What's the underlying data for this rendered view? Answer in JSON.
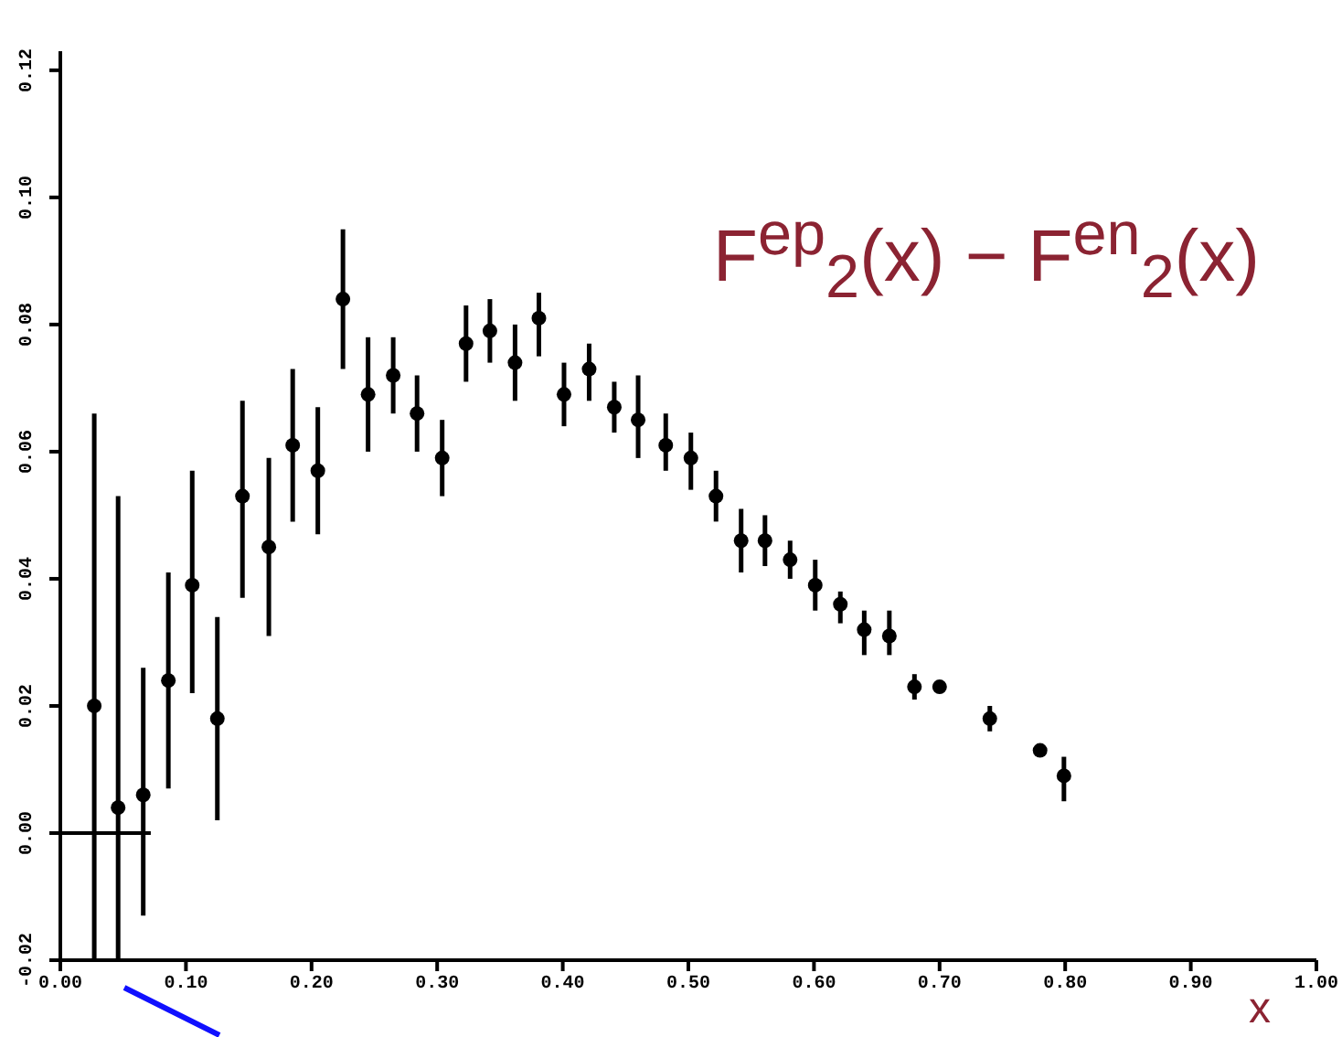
{
  "chart_data": {
    "type": "scatter",
    "xlabel": "x",
    "annotations": [
      "F$^{ep}$$_{2}$(x) − F$^{en}$$_{2}$(x)"
    ],
    "xlim": [
      0,
      1
    ],
    "ylim": [
      -0.02,
      0.123
    ],
    "xticks": [
      {
        "value": 0,
        "label": "0.00"
      },
      {
        "value": 0.1,
        "label": "0.10"
      },
      {
        "value": 0.2,
        "label": "0.20"
      },
      {
        "value": 0.3,
        "label": "0.30"
      },
      {
        "value": 0.4,
        "label": "0.40"
      },
      {
        "value": 0.5,
        "label": "0.50"
      },
      {
        "value": 0.6,
        "label": "0.60"
      },
      {
        "value": 0.7,
        "label": "0.70"
      },
      {
        "value": 0.8,
        "label": "0.80"
      },
      {
        "value": 0.9,
        "label": "0.90"
      },
      {
        "value": 1,
        "label": "1.00"
      }
    ],
    "yticks": [
      {
        "value": -0.02,
        "label": "-0.02"
      },
      {
        "value": 0,
        "label": "0.00"
      },
      {
        "value": 0.02,
        "label": "0.02"
      },
      {
        "value": 0.04,
        "label": "0.04"
      },
      {
        "value": 0.06,
        "label": "0.06"
      },
      {
        "value": 0.08,
        "label": "0.08"
      },
      {
        "value": 0.1,
        "label": "0.10"
      },
      {
        "value": 0.12,
        "label": "0.12"
      }
    ],
    "grid": false,
    "marker": "circle",
    "series": [
      {
        "type": "scatter",
        "color": "#000000",
        "x": [
          0.027,
          0.046,
          0.066,
          0.086,
          0.105,
          0.125,
          0.145,
          0.166,
          0.185,
          0.205,
          0.225,
          0.245,
          0.265,
          0.284,
          0.304,
          0.323,
          0.342,
          0.362,
          0.381,
          0.401,
          0.421,
          0.441,
          0.46,
          0.482,
          0.502,
          0.522,
          0.542,
          0.561,
          0.581,
          0.601,
          0.621,
          0.64,
          0.66,
          0.68,
          0.7,
          0.74,
          0.78,
          0.799
        ],
        "values": [
          0.02,
          0.004,
          0.006,
          0.024,
          0.039,
          0.018,
          0.053,
          0.045,
          0.061,
          0.057,
          0.084,
          0.069,
          0.072,
          0.066,
          0.059,
          0.077,
          0.079,
          0.074,
          0.081,
          0.069,
          0.073,
          0.067,
          0.065,
          0.061,
          0.059,
          0.053,
          0.046,
          0.046,
          0.043,
          0.039,
          0.036,
          0.032,
          0.031,
          0.023,
          0.023,
          0.018,
          0.013,
          0.009
        ],
        "errors": [
          [
            -0.02,
            0.066
          ],
          [
            -0.02,
            0.053
          ],
          [
            -0.013,
            0.026
          ],
          [
            0.007,
            0.041
          ],
          [
            0.022,
            0.057
          ],
          [
            0.002,
            0.034
          ],
          [
            0.037,
            0.068
          ],
          [
            0.031,
            0.059
          ],
          [
            0.049,
            0.073
          ],
          [
            0.047,
            0.067
          ],
          [
            0.073,
            0.095
          ],
          [
            0.06,
            0.078
          ],
          [
            0.066,
            0.078
          ],
          [
            0.06,
            0.072
          ],
          [
            0.053,
            0.065
          ],
          [
            0.071,
            0.083
          ],
          [
            0.074,
            0.084
          ],
          [
            0.068,
            0.08
          ],
          [
            0.075,
            0.085
          ],
          [
            0.064,
            0.074
          ],
          [
            0.068,
            0.077
          ],
          [
            0.063,
            0.071
          ],
          [
            0.059,
            0.072
          ],
          [
            0.057,
            0.066
          ],
          [
            0.054,
            0.063
          ],
          [
            0.049,
            0.057
          ],
          [
            0.041,
            0.051
          ],
          [
            0.042,
            0.05
          ],
          [
            0.04,
            0.046
          ],
          [
            0.035,
            0.043
          ],
          [
            0.033,
            0.038
          ],
          [
            0.028,
            0.035
          ],
          [
            0.028,
            0.035
          ],
          [
            0.021,
            0.025
          ],
          [
            0.022,
            0.024
          ],
          [
            0.016,
            0.02
          ],
          null,
          [
            0.005,
            0.012
          ]
        ]
      },
      {
        "type": "line",
        "color": "#000000",
        "marker": "none",
        "x": [
          0,
          0.072
        ],
        "values": [
          0,
          0
        ]
      }
    ]
  }
}
